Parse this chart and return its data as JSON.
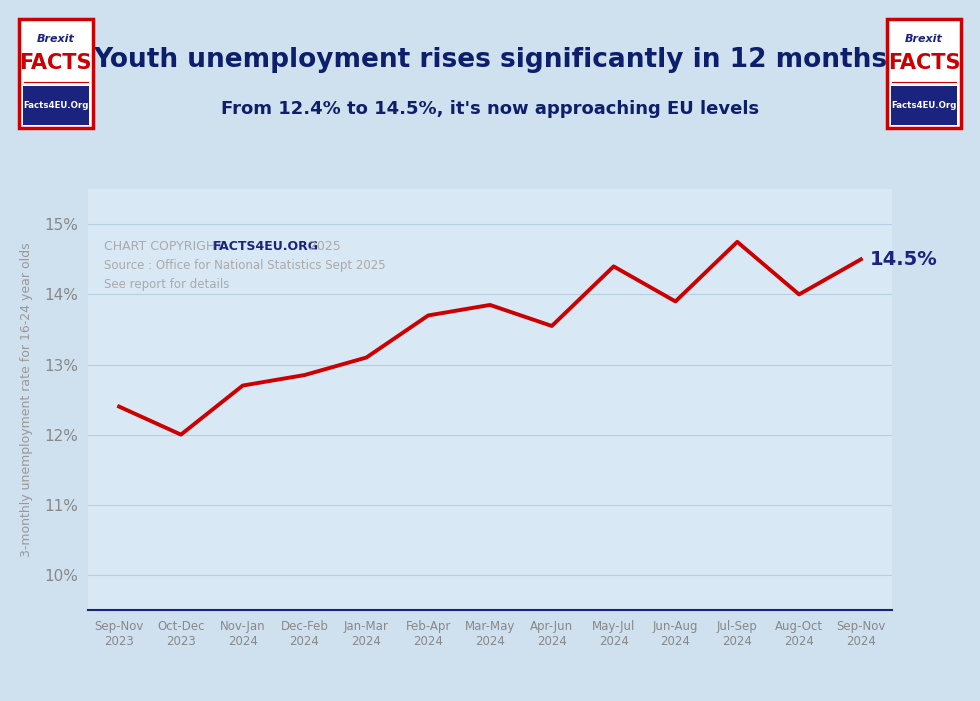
{
  "title_line1": "Youth unemployment rises significantly in 12 months",
  "title_line2": "From 12.4% to 14.5%, it's now approaching EU levels",
  "ylabel": "3-monthly unemployment rate for 16-24 year olds",
  "last_label": "14.5%",
  "background_color": "#cfe0ef",
  "plot_bg_color": "#d8e8f4",
  "line_color": "#cc0000",
  "line_width": 2.8,
  "title_color": "#0d1f6b",
  "subtitle_color": "#0d1f6b",
  "ylabel_color": "#999999",
  "tick_color": "#888888",
  "grid_color": "#b8cfe0",
  "copyright_color": "#aaaaaa",
  "copyright_bold_color": "#1a237e",
  "annotation_color": "#1a237e",
  "ytick_labels": [
    "10%",
    "11%",
    "12%",
    "13%",
    "14%",
    "15%"
  ],
  "ytick_values": [
    10,
    11,
    12,
    13,
    14,
    15
  ],
  "ylim": [
    9.5,
    15.5
  ],
  "categories": [
    "Sep-Nov\n2023",
    "Oct-Dec\n2023",
    "Nov-Jan\n2024",
    "Dec-Feb\n2024",
    "Jan-Mar\n2024",
    "Feb-Apr\n2024",
    "Mar-May\n2024",
    "Apr-Jun\n2024",
    "May-Jul\n2024",
    "Jun-Aug\n2024",
    "Jul-Sep\n2024",
    "Aug-Oct\n2024",
    "Sep-Nov\n2024"
  ],
  "values": [
    12.4,
    12.0,
    12.7,
    12.85,
    13.1,
    13.7,
    13.85,
    13.55,
    14.4,
    13.9,
    14.75,
    14.0,
    14.5
  ],
  "copyright_text": "CHART COPYRIGHT ",
  "copyright_bold": "FACTS4EU.ORG",
  "copyright_year": " 2025",
  "source_line1": "Source : Office for National Statistics Sept 2025",
  "source_line2": "See report for details"
}
